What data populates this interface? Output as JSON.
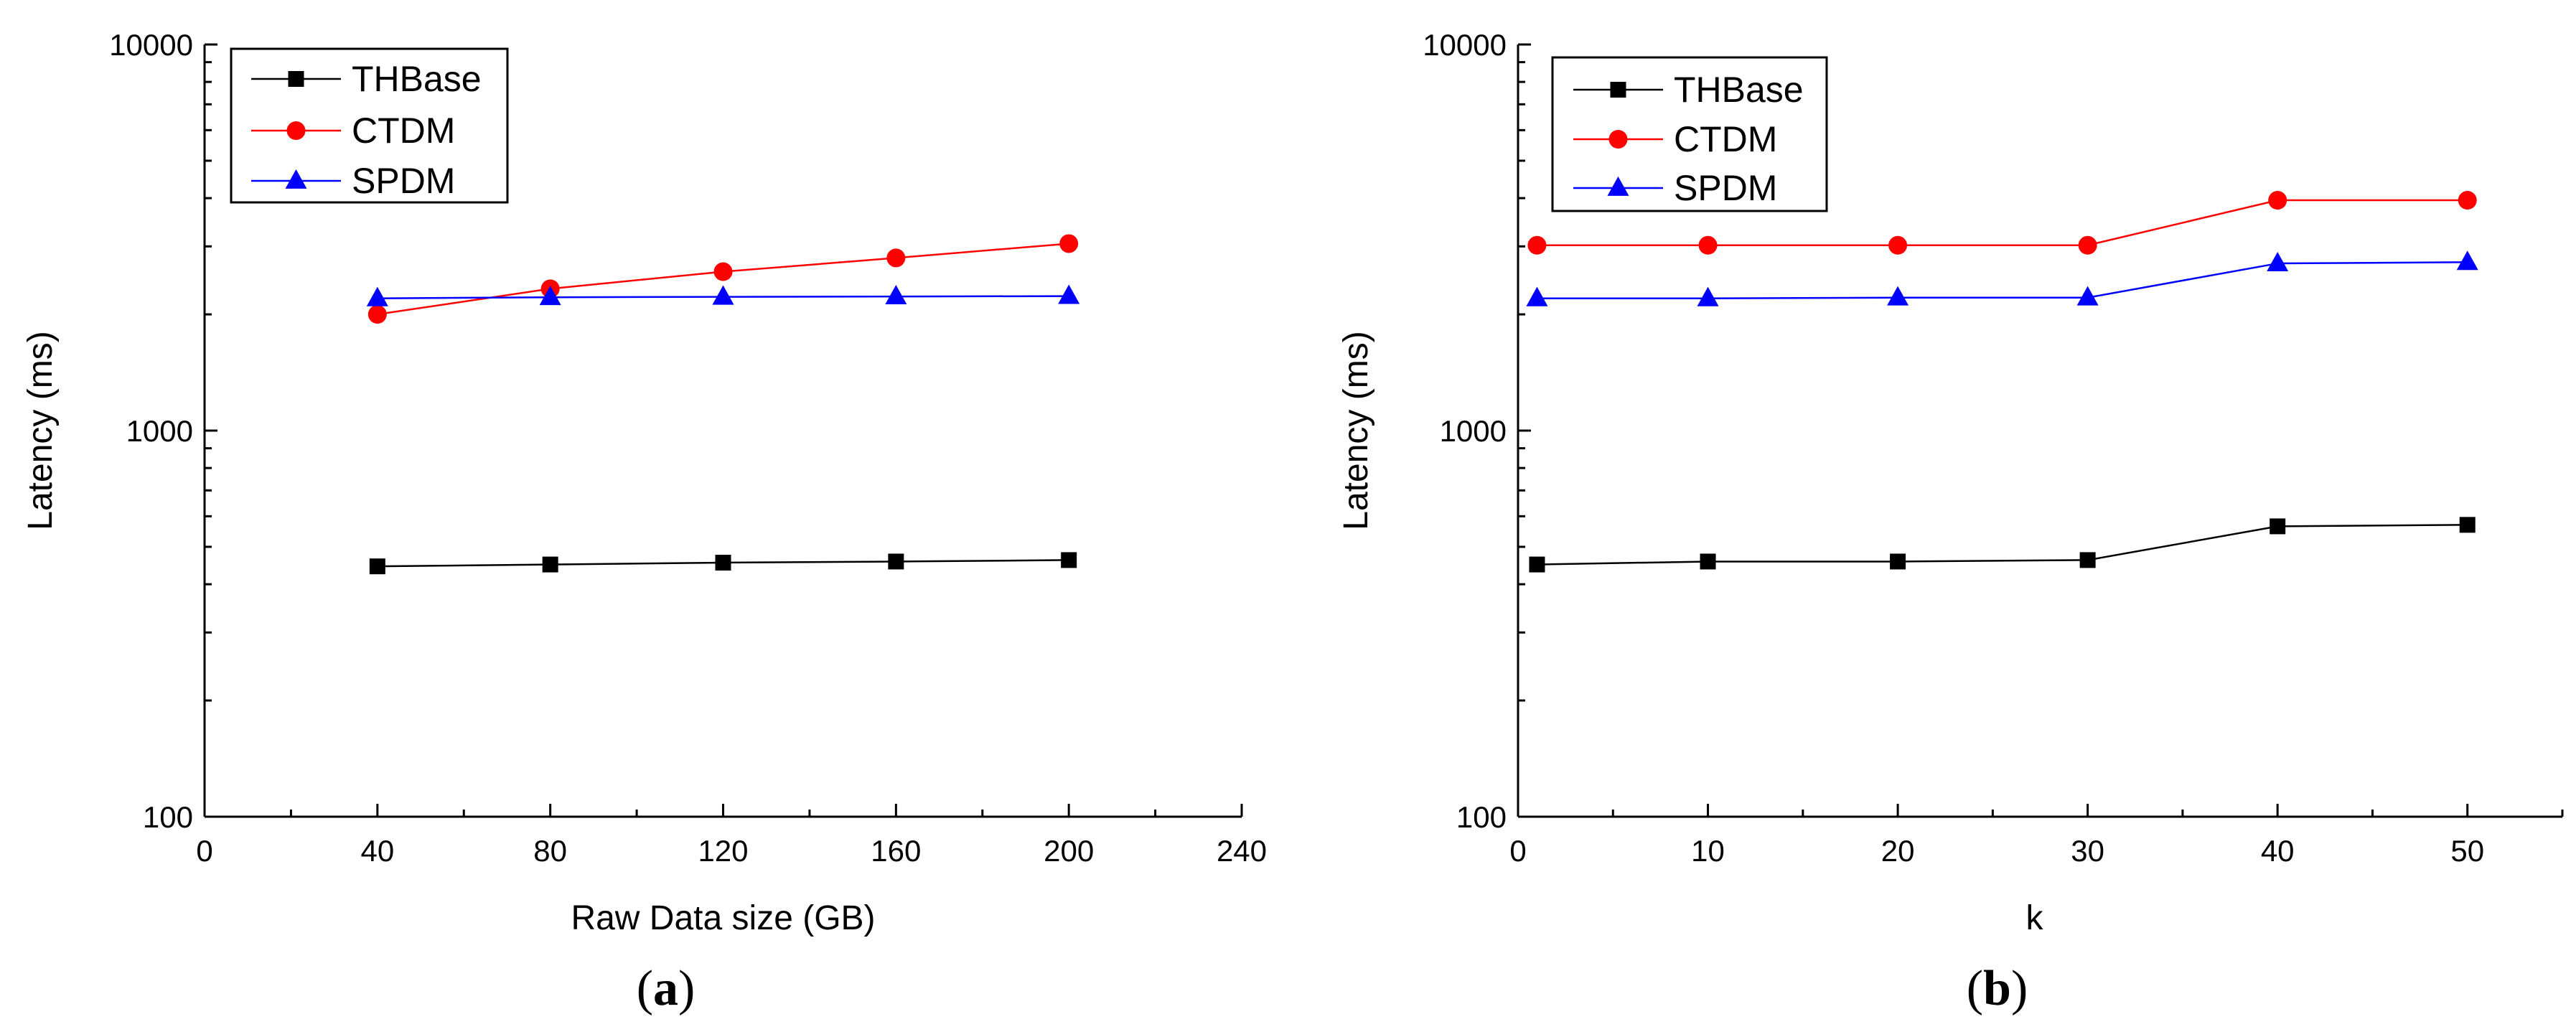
{
  "chart_data": [
    {
      "type": "line",
      "panel_label": "a",
      "xlabel": "Raw Data  size (GB)",
      "ylabel": "Latency (ms)",
      "yscale": "log",
      "xlim": [
        0,
        240
      ],
      "ylim": [
        100,
        10000
      ],
      "xticks": [
        0,
        40,
        80,
        120,
        160,
        200,
        240
      ],
      "yticks": [
        100,
        1000,
        10000
      ],
      "grid": false,
      "legend_position": "top-left",
      "x": [
        40,
        80,
        120,
        160,
        200
      ],
      "series": [
        {
          "name": "THBase",
          "color": "#000000",
          "marker": "square",
          "values": [
            445,
            450,
            455,
            458,
            462
          ]
        },
        {
          "name": "CTDM",
          "color": "#ff0000",
          "marker": "circle",
          "values": [
            2000,
            2330,
            2580,
            2800,
            3050
          ]
        },
        {
          "name": "SPDM",
          "color": "#0000ff",
          "marker": "triangle",
          "values": [
            2200,
            2215,
            2220,
            2225,
            2230
          ]
        }
      ]
    },
    {
      "type": "line",
      "panel_label": "b",
      "xlabel": "k",
      "ylabel": "Latency (ms)",
      "yscale": "log",
      "xlim": [
        0,
        55
      ],
      "ylim": [
        100,
        10000
      ],
      "xticks": [
        0,
        10,
        20,
        30,
        40,
        50
      ],
      "yticks": [
        100,
        1000,
        10000
      ],
      "grid": false,
      "legend_position": "top-left",
      "x": [
        1,
        10,
        20,
        30,
        40,
        50
      ],
      "series": [
        {
          "name": "THBase",
          "color": "#000000",
          "marker": "square",
          "values": [
            450,
            458,
            458,
            462,
            565,
            570
          ]
        },
        {
          "name": "CTDM",
          "color": "#ff0000",
          "marker": "circle",
          "values": [
            3020,
            3020,
            3020,
            3020,
            3950,
            3950
          ]
        },
        {
          "name": "SPDM",
          "color": "#0000ff",
          "marker": "triangle",
          "values": [
            2200,
            2200,
            2210,
            2210,
            2710,
            2730
          ]
        }
      ]
    }
  ]
}
